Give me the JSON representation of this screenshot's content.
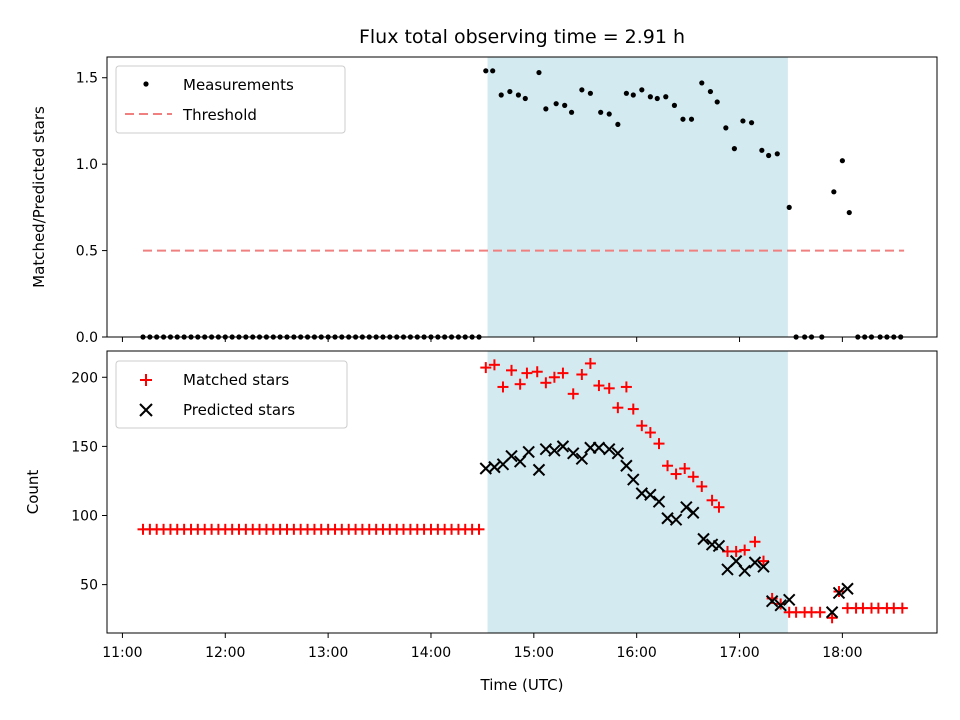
{
  "chart_data": [
    {
      "panel": "top",
      "type": "scatter",
      "title": "Flux total observing time = 2.91 h",
      "xlabel": "",
      "ylabel": "Matched/Predicted stars",
      "ylim": [
        0,
        1.62
      ],
      "yticks": [
        0.0,
        0.5,
        1.0,
        1.5
      ],
      "ytick_labels": [
        "0.0",
        "0.5",
        "1.0",
        "1.5"
      ],
      "xlim_hours": [
        10.85,
        18.92
      ],
      "legend_position": "top-left",
      "shaded_region_hours": [
        14.55,
        17.47
      ],
      "shade_color": "#d3eaf0",
      "series": [
        {
          "name": "Measurements",
          "marker": "dot",
          "color": "#000000",
          "points": [
            [
              11.2,
              0
            ],
            [
              11.267,
              0
            ],
            [
              11.333,
              0
            ],
            [
              11.4,
              0
            ],
            [
              11.467,
              0
            ],
            [
              11.533,
              0
            ],
            [
              11.6,
              0
            ],
            [
              11.667,
              0
            ],
            [
              11.733,
              0
            ],
            [
              11.8,
              0
            ],
            [
              11.867,
              0
            ],
            [
              11.933,
              0
            ],
            [
              12.0,
              0
            ],
            [
              12.067,
              0
            ],
            [
              12.133,
              0
            ],
            [
              12.2,
              0
            ],
            [
              12.267,
              0
            ],
            [
              12.333,
              0
            ],
            [
              12.4,
              0
            ],
            [
              12.467,
              0
            ],
            [
              12.533,
              0
            ],
            [
              12.6,
              0
            ],
            [
              12.667,
              0
            ],
            [
              12.733,
              0
            ],
            [
              12.8,
              0
            ],
            [
              12.867,
              0
            ],
            [
              12.933,
              0
            ],
            [
              13.0,
              0
            ],
            [
              13.067,
              0
            ],
            [
              13.133,
              0
            ],
            [
              13.2,
              0
            ],
            [
              13.267,
              0
            ],
            [
              13.333,
              0
            ],
            [
              13.4,
              0
            ],
            [
              13.467,
              0
            ],
            [
              13.533,
              0
            ],
            [
              13.6,
              0
            ],
            [
              13.667,
              0
            ],
            [
              13.733,
              0
            ],
            [
              13.8,
              0
            ],
            [
              13.867,
              0
            ],
            [
              13.933,
              0
            ],
            [
              14.0,
              0
            ],
            [
              14.067,
              0
            ],
            [
              14.133,
              0
            ],
            [
              14.2,
              0
            ],
            [
              14.267,
              0
            ],
            [
              14.333,
              0
            ],
            [
              14.4,
              0
            ],
            [
              14.467,
              0
            ],
            [
              14.533,
              1.54
            ],
            [
              14.6,
              1.54
            ],
            [
              14.683,
              1.4
            ],
            [
              14.767,
              1.42
            ],
            [
              14.85,
              1.4
            ],
            [
              14.917,
              1.38
            ],
            [
              15.05,
              1.53
            ],
            [
              15.117,
              1.32
            ],
            [
              15.217,
              1.35
            ],
            [
              15.3,
              1.34
            ],
            [
              15.367,
              1.3
            ],
            [
              15.467,
              1.43
            ],
            [
              15.55,
              1.41
            ],
            [
              15.65,
              1.3
            ],
            [
              15.733,
              1.29
            ],
            [
              15.817,
              1.23
            ],
            [
              15.9,
              1.41
            ],
            [
              15.967,
              1.4
            ],
            [
              16.05,
              1.43
            ],
            [
              16.133,
              1.39
            ],
            [
              16.2,
              1.38
            ],
            [
              16.283,
              1.39
            ],
            [
              16.367,
              1.34
            ],
            [
              16.45,
              1.26
            ],
            [
              16.533,
              1.26
            ],
            [
              16.633,
              1.47
            ],
            [
              16.717,
              1.42
            ],
            [
              16.783,
              1.36
            ],
            [
              16.867,
              1.21
            ],
            [
              16.95,
              1.09
            ],
            [
              17.033,
              1.25
            ],
            [
              17.117,
              1.24
            ],
            [
              17.217,
              1.08
            ],
            [
              17.283,
              1.05
            ],
            [
              17.367,
              1.06
            ],
            [
              17.483,
              0.75
            ],
            [
              17.55,
              0
            ],
            [
              17.633,
              0
            ],
            [
              17.7,
              0
            ],
            [
              17.8,
              0
            ],
            [
              17.917,
              0.84
            ],
            [
              18.0,
              1.02
            ],
            [
              18.067,
              0.72
            ],
            [
              18.15,
              0
            ],
            [
              18.217,
              0
            ],
            [
              18.283,
              0
            ],
            [
              18.367,
              0
            ],
            [
              18.433,
              0
            ],
            [
              18.5,
              0
            ],
            [
              18.567,
              0
            ]
          ]
        },
        {
          "name": "Threshold",
          "marker": "dashed-line",
          "color": "#f08080",
          "x_range_hours": [
            11.2,
            18.6
          ],
          "value": 0.5
        }
      ]
    },
    {
      "panel": "bottom",
      "type": "scatter",
      "title": "",
      "xlabel": "Time (UTC)",
      "ylabel": "Count",
      "ylim": [
        15,
        219
      ],
      "yticks": [
        50,
        100,
        150,
        200
      ],
      "ytick_labels": [
        "50",
        "100",
        "150",
        "200"
      ],
      "xlim_hours": [
        10.85,
        18.92
      ],
      "xticks_hours": [
        11,
        12,
        13,
        14,
        15,
        16,
        17,
        18
      ],
      "xtick_labels": [
        "11:00",
        "12:00",
        "13:00",
        "14:00",
        "15:00",
        "16:00",
        "17:00",
        "18:00"
      ],
      "legend_position": "top-left",
      "shaded_region_hours": [
        14.55,
        17.47
      ],
      "shade_color": "#d3eaf0",
      "series": [
        {
          "name": "Matched stars",
          "marker": "plus",
          "color": "#ff0000",
          "points": [
            [
              11.2,
              90
            ],
            [
              11.267,
              90
            ],
            [
              11.333,
              90
            ],
            [
              11.4,
              90
            ],
            [
              11.467,
              90
            ],
            [
              11.533,
              90
            ],
            [
              11.6,
              90
            ],
            [
              11.667,
              90
            ],
            [
              11.733,
              90
            ],
            [
              11.8,
              90
            ],
            [
              11.867,
              90
            ],
            [
              11.933,
              90
            ],
            [
              12.0,
              90
            ],
            [
              12.067,
              90
            ],
            [
              12.133,
              90
            ],
            [
              12.2,
              90
            ],
            [
              12.267,
              90
            ],
            [
              12.333,
              90
            ],
            [
              12.4,
              90
            ],
            [
              12.467,
              90
            ],
            [
              12.533,
              90
            ],
            [
              12.6,
              90
            ],
            [
              12.667,
              90
            ],
            [
              12.733,
              90
            ],
            [
              12.8,
              90
            ],
            [
              12.867,
              90
            ],
            [
              12.933,
              90
            ],
            [
              13.0,
              90
            ],
            [
              13.067,
              90
            ],
            [
              13.133,
              90
            ],
            [
              13.2,
              90
            ],
            [
              13.267,
              90
            ],
            [
              13.333,
              90
            ],
            [
              13.4,
              90
            ],
            [
              13.467,
              90
            ],
            [
              13.533,
              90
            ],
            [
              13.6,
              90
            ],
            [
              13.667,
              90
            ],
            [
              13.733,
              90
            ],
            [
              13.8,
              90
            ],
            [
              13.867,
              90
            ],
            [
              13.933,
              90
            ],
            [
              14.0,
              90
            ],
            [
              14.067,
              90
            ],
            [
              14.133,
              90
            ],
            [
              14.2,
              90
            ],
            [
              14.267,
              90
            ],
            [
              14.333,
              90
            ],
            [
              14.4,
              90
            ],
            [
              14.467,
              90
            ],
            [
              14.533,
              207
            ],
            [
              14.617,
              209
            ],
            [
              14.7,
              193
            ],
            [
              14.783,
              205
            ],
            [
              14.867,
              195
            ],
            [
              14.933,
              203
            ],
            [
              15.033,
              204
            ],
            [
              15.117,
              196
            ],
            [
              15.2,
              200
            ],
            [
              15.283,
              203
            ],
            [
              15.383,
              188
            ],
            [
              15.467,
              202
            ],
            [
              15.55,
              210
            ],
            [
              15.633,
              194
            ],
            [
              15.733,
              192
            ],
            [
              15.817,
              178
            ],
            [
              15.9,
              193
            ],
            [
              15.967,
              177
            ],
            [
              16.05,
              165
            ],
            [
              16.133,
              160
            ],
            [
              16.217,
              152
            ],
            [
              16.3,
              136
            ],
            [
              16.383,
              130
            ],
            [
              16.467,
              134
            ],
            [
              16.55,
              128
            ],
            [
              16.633,
              121
            ],
            [
              16.733,
              111
            ],
            [
              16.8,
              106
            ],
            [
              16.883,
              74
            ],
            [
              16.967,
              74
            ],
            [
              17.05,
              75
            ],
            [
              17.15,
              81
            ],
            [
              17.233,
              67
            ],
            [
              17.317,
              40
            ],
            [
              17.4,
              36
            ],
            [
              17.483,
              30
            ],
            [
              17.55,
              30
            ],
            [
              17.633,
              30
            ],
            [
              17.7,
              30
            ],
            [
              17.783,
              30
            ],
            [
              17.9,
              26
            ],
            [
              17.967,
              45
            ],
            [
              18.05,
              33
            ],
            [
              18.133,
              33
            ],
            [
              18.2,
              33
            ],
            [
              18.283,
              33
            ],
            [
              18.35,
              33
            ],
            [
              18.433,
              33
            ],
            [
              18.5,
              33
            ],
            [
              18.583,
              33
            ]
          ]
        },
        {
          "name": "Predicted stars",
          "marker": "x",
          "color": "#000000",
          "points": [
            [
              14.533,
              134
            ],
            [
              14.617,
              135
            ],
            [
              14.7,
              137
            ],
            [
              14.783,
              143
            ],
            [
              14.867,
              139
            ],
            [
              14.95,
              146
            ],
            [
              15.05,
              133
            ],
            [
              15.117,
              148
            ],
            [
              15.2,
              147
            ],
            [
              15.283,
              150
            ],
            [
              15.383,
              145
            ],
            [
              15.467,
              141
            ],
            [
              15.55,
              149
            ],
            [
              15.633,
              149
            ],
            [
              15.733,
              148
            ],
            [
              15.817,
              145
            ],
            [
              15.9,
              136
            ],
            [
              15.967,
              126
            ],
            [
              16.05,
              116
            ],
            [
              16.133,
              115
            ],
            [
              16.217,
              110
            ],
            [
              16.3,
              98
            ],
            [
              16.383,
              97
            ],
            [
              16.483,
              106
            ],
            [
              16.55,
              102
            ],
            [
              16.65,
              83
            ],
            [
              16.733,
              79
            ],
            [
              16.8,
              78
            ],
            [
              16.883,
              61
            ],
            [
              16.967,
              67
            ],
            [
              17.05,
              60
            ],
            [
              17.15,
              66
            ],
            [
              17.233,
              63
            ],
            [
              17.317,
              38
            ],
            [
              17.4,
              35
            ],
            [
              17.483,
              39
            ],
            [
              17.9,
              30
            ],
            [
              17.967,
              44
            ],
            [
              18.05,
              47
            ]
          ]
        }
      ]
    }
  ]
}
